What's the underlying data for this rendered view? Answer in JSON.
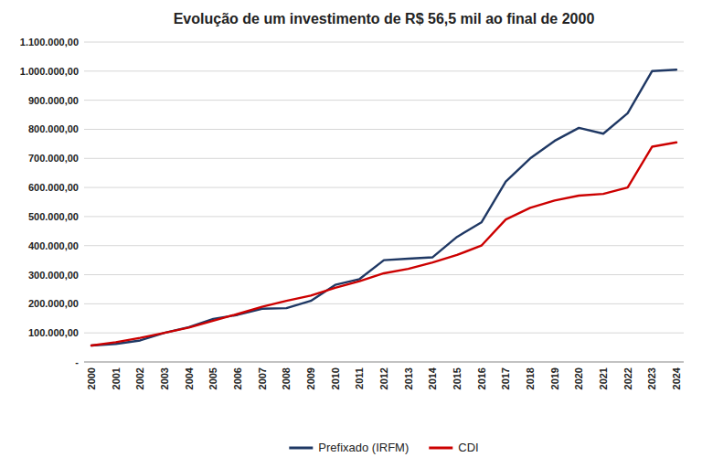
{
  "chart_data": {
    "type": "line",
    "title": "Evolução de um investimento de R$ 56,5 mil ao final de 2000",
    "x": [
      2000,
      2001,
      2002,
      2003,
      2004,
      2005,
      2006,
      2007,
      2008,
      2009,
      2010,
      2011,
      2012,
      2013,
      2014,
      2015,
      2016,
      2017,
      2018,
      2019,
      2020,
      2021,
      2022,
      2023,
      2024
    ],
    "series": [
      {
        "name": "Prefixado (IRFM)",
        "color": "#1F3864",
        "values": [
          56500,
          62000,
          74000,
          100000,
          120000,
          148000,
          162000,
          183000,
          185000,
          210000,
          265000,
          285000,
          350000,
          355000,
          360000,
          430000,
          480000,
          620000,
          700000,
          760000,
          805000,
          785000,
          855000,
          1000000,
          1005000
        ]
      },
      {
        "name": "CDI",
        "color": "#CC0000",
        "values": [
          56500,
          68000,
          83000,
          100000,
          118000,
          142000,
          165000,
          190000,
          210000,
          228000,
          255000,
          278000,
          305000,
          320000,
          342000,
          368000,
          400000,
          490000,
          530000,
          555000,
          572000,
          578000,
          600000,
          740000,
          755000
        ]
      }
    ],
    "xlim": [
      1999.7,
      2024.3
    ],
    "xticks": [
      2000,
      2001,
      2002,
      2003,
      2004,
      2005,
      2006,
      2007,
      2008,
      2009,
      2010,
      2011,
      2012,
      2013,
      2014,
      2015,
      2016,
      2017,
      2018,
      2019,
      2020,
      2021,
      2022,
      2023,
      2024
    ],
    "ylim": [
      0,
      1100000
    ],
    "yticks": [
      {
        "value": 0,
        "label": "-"
      },
      {
        "value": 100000,
        "label": "100.000,00"
      },
      {
        "value": 200000,
        "label": "200.000,00"
      },
      {
        "value": 300000,
        "label": "300.000,00"
      },
      {
        "value": 400000,
        "label": "400.000,00"
      },
      {
        "value": 500000,
        "label": "500.000,00"
      },
      {
        "value": 600000,
        "label": "600.000,00"
      },
      {
        "value": 700000,
        "label": "700.000,00"
      },
      {
        "value": 800000,
        "label": "800.000,00"
      },
      {
        "value": 900000,
        "label": "900.000,00"
      },
      {
        "value": 1000000,
        "label": "1.000.000,00"
      },
      {
        "value": 1100000,
        "label": "1.100.000,00"
      }
    ],
    "grid": true,
    "legend": "bottom"
  }
}
